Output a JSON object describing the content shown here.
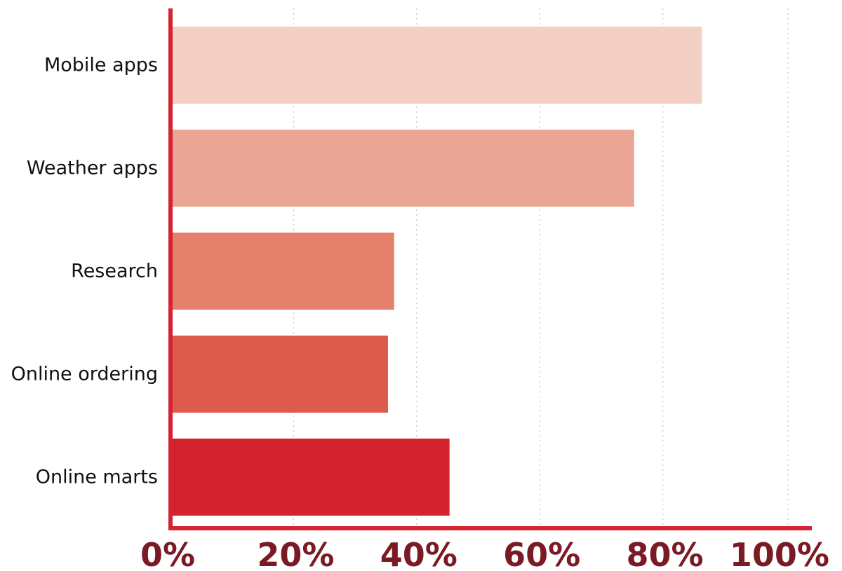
{
  "chart_data": {
    "type": "bar",
    "orientation": "horizontal",
    "categories": [
      "Mobile apps",
      "Weather apps",
      "Research",
      "Online ordering",
      "Online marts"
    ],
    "values": [
      86,
      75,
      36,
      35,
      45
    ],
    "value_unit": "%",
    "xlim": [
      0,
      100
    ],
    "xticks": [
      0,
      20,
      40,
      60,
      80,
      100
    ],
    "xtick_labels": [
      "0%",
      "20%",
      "40%",
      "60%",
      "80%",
      "100%"
    ],
    "title": "",
    "xlabel": "",
    "ylabel": "",
    "grid": "vertical dotted",
    "legend": "none",
    "colors": [
      "#f4cfc4",
      "#eaa594",
      "#e4806c",
      "#dd5b4d",
      "#d4232f"
    ],
    "axis_color": "#d42431",
    "tick_label_color": "#7a1a24"
  }
}
